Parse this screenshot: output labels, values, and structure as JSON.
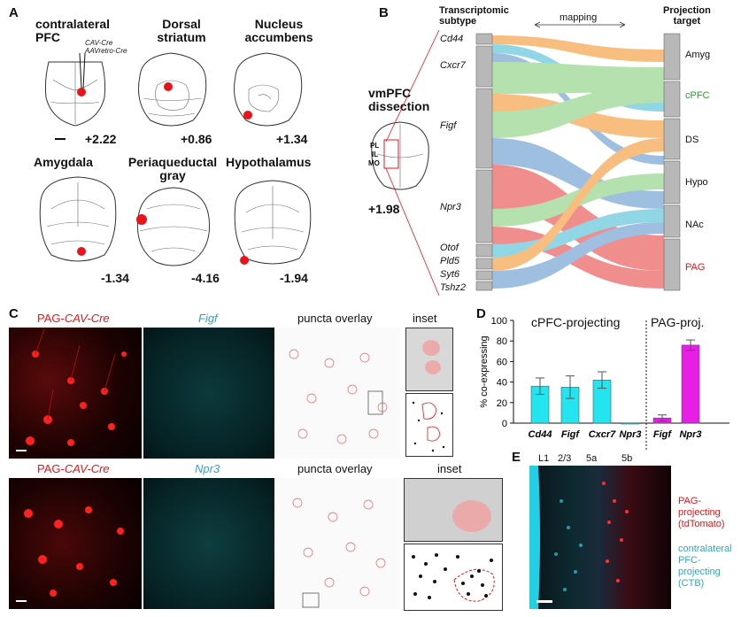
{
  "panel_a": {
    "letter": "A",
    "regions": [
      {
        "title": "contralateral\nPFC",
        "coord": "+2.22"
      },
      {
        "title": "Dorsal\nstriatum",
        "coord": "+0.86"
      },
      {
        "title": "Nucleus\naccumbens",
        "coord": "+1.34"
      },
      {
        "title": "Amygdala",
        "coord": "-1.34"
      },
      {
        "title": "Periaqueductal\ngray",
        "coord": "-4.16"
      },
      {
        "title": "Hypothalamus",
        "coord": "-1.94"
      }
    ],
    "injection_note_1": "CAV-Cre",
    "injection_note_2": "AAVretro-Cre",
    "injection_color": "#e8141c"
  },
  "panel_b": {
    "letter": "B",
    "header_left": "Transcriptomic\nsubtype",
    "header_mid": "mapping",
    "header_right": "Projection\ntarget",
    "dissection_title": "vmPFC\ndissection",
    "dissection_coord": "+1.98",
    "dissection_labels": [
      "PL",
      "IL",
      "MO"
    ],
    "subtypes": [
      "Cd44",
      "Cxcr7",
      "Figf",
      "Npr3",
      "Otof",
      "Pld5",
      "Syt6",
      "Tshz2"
    ],
    "targets": [
      {
        "name": "Amyg",
        "color": "#111111"
      },
      {
        "name": "cPFC",
        "color": "#2a9d2a"
      },
      {
        "name": "DS",
        "color": "#111111"
      },
      {
        "name": "Hypo",
        "color": "#111111"
      },
      {
        "name": "NAc",
        "color": "#111111"
      },
      {
        "name": "PAG",
        "color": "#e8141c"
      }
    ],
    "flow_colors": {
      "Amyg": "#a8dca0",
      "cPFC": "#a8dca0",
      "DS": "#f6b36a",
      "Hypo": "#8fb4dc",
      "NAc": "#7ecfe0",
      "PAG": "#ee7b7b"
    }
  },
  "panel_c": {
    "letter": "C",
    "row1": {
      "red": "PAG-",
      "red_ital": "CAV-Cre",
      "cyan": "Figf",
      "overlay": "puncta overlay",
      "inset": "inset"
    },
    "row2": {
      "red": "PAG-",
      "red_ital": "CAV-Cre",
      "cyan": "Npr3",
      "overlay": "puncta overlay",
      "inset": "inset"
    },
    "red_color": "#e8141c",
    "cyan_color": "#2aa8c0"
  },
  "panel_d": {
    "letter": "D",
    "group1": "cPFC-projecting",
    "group2": "PAG-proj.",
    "chart_data": {
      "type": "bar",
      "ylabel": "% co-expressing",
      "ylim": [
        0,
        100
      ],
      "yticks": [
        0,
        20,
        40,
        60,
        80,
        100
      ],
      "categories": [
        "Cd44",
        "Figf",
        "Cxcr7",
        "Npr3",
        "Figf",
        "Npr3"
      ],
      "values": [
        36,
        35,
        42,
        0,
        5,
        76
      ],
      "errors": [
        8,
        11,
        8,
        0,
        3,
        5
      ],
      "colors": [
        "#22e5f0",
        "#22e5f0",
        "#22e5f0",
        "#22e5f0",
        "#e61ee6",
        "#e61ee6"
      ],
      "groups": [
        "cPFC-projecting",
        "cPFC-projecting",
        "cPFC-projecting",
        "cPFC-projecting",
        "PAG-proj.",
        "PAG-proj."
      ]
    }
  },
  "panel_e": {
    "letter": "E",
    "layers": [
      "L1",
      "2/3",
      "5a",
      "5b"
    ],
    "legend1": "PAG-\nprojecting\n(tdTomato)",
    "legend2": "contralateral\nPFC-\nprojecting\n(CTB)",
    "legend1_color": "#e8141c",
    "legend2_color": "#2aa8c0"
  }
}
